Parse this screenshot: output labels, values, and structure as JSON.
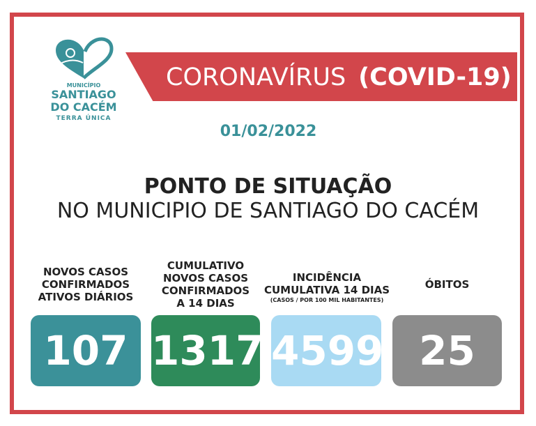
{
  "logo": {
    "line1": "MUNICÍPIO",
    "line2": "SANTIAGO",
    "line3": "DO CACÉM",
    "line4": "TERRA ÚNICA"
  },
  "banner": {
    "text": "CORONAVÍRUS",
    "bold": "(COVID-19)"
  },
  "date": "01/02/2022",
  "heading": {
    "line1": "PONTO DE SITUAÇÃO",
    "line2": "NO MUNICIPIO DE SANTIAGO DO CACÉM"
  },
  "stats": [
    {
      "label1": "NOVOS CASOS",
      "label2": "CONFIRMADOS",
      "label3": "ATIVOS DIÁRIOS",
      "value": "107",
      "color": "#3b9199"
    },
    {
      "label1": "CUMULATIVO",
      "label2": "NOVOS CASOS",
      "label3": "CONFIRMADOS",
      "label4": "A 14 DIAS",
      "value": "1317",
      "color": "#2e8b5a"
    },
    {
      "label1": "INCIDÊNCIA",
      "label2": "CUMULATIVA 14 DIAS",
      "note": "(CASOS / POR 100 MIL HABITANTES)",
      "value": "4599",
      "color": "#a9daf3"
    },
    {
      "label1": "ÓBITOS",
      "value": "25",
      "color": "#8c8c8c"
    }
  ],
  "colors": {
    "frame": "#d2464b",
    "accent": "#3a9199"
  }
}
